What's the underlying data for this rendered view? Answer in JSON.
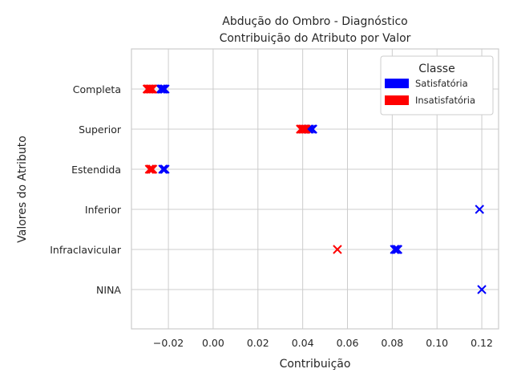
{
  "chart_data": {
    "type": "scatter",
    "title": "Abdução do Ombro - Diagnóstico",
    "subtitle": "Contribuição do Atributo por Valor",
    "xlabel": "Contribuição",
    "ylabel": "Valores do Atributo",
    "xlim": [
      -0.0365,
      0.1275
    ],
    "xticks": [
      -0.02,
      0.0,
      0.02,
      0.04,
      0.06,
      0.08,
      0.1,
      0.12
    ],
    "xtick_labels": [
      "−0.02",
      "0.00",
      "0.02",
      "0.04",
      "0.06",
      "0.08",
      "0.10",
      "0.12"
    ],
    "categories": [
      "Completa",
      "Superior",
      "Estendida",
      "Inferior",
      "Infraclavicular",
      "NINA"
    ],
    "grid": true,
    "marker": "x",
    "legend": {
      "title": "Classe",
      "position": "top-right",
      "entries": [
        {
          "label": "Satisfatória",
          "color": "#0000ff"
        },
        {
          "label": "Insatisfatória",
          "color": "#ff0000"
        }
      ]
    },
    "series": [
      {
        "name": "Satisfatória",
        "color": "#0000ff",
        "points": [
          {
            "category": "Completa",
            "x": [
              -0.0235,
              -0.023,
              -0.0225,
              -0.022,
              -0.0215
            ]
          },
          {
            "category": "Superior",
            "x": [
              0.0425,
              0.043,
              0.044,
              0.0445
            ]
          },
          {
            "category": "Estendida",
            "x": [
              -0.0225,
              -0.022,
              -0.0215
            ]
          },
          {
            "category": "Inferior",
            "x": [
              0.119
            ]
          },
          {
            "category": "Infraclavicular",
            "x": [
              0.081,
              0.0815,
              0.082,
              0.0825
            ]
          },
          {
            "category": "NINA",
            "x": [
              0.12
            ]
          }
        ]
      },
      {
        "name": "Insatisfatória",
        "color": "#ff0000",
        "points": [
          {
            "category": "Completa",
            "x": [
              -0.0295,
              -0.029,
              -0.0285,
              -0.028,
              -0.0275,
              -0.027
            ]
          },
          {
            "category": "Superior",
            "x": [
              0.039,
              0.0395,
              0.04,
              0.0405,
              0.041,
              0.0415
            ]
          },
          {
            "category": "Estendida",
            "x": [
              -0.0285,
              -0.028,
              -0.0275,
              -0.027
            ]
          },
          {
            "category": "Infraclavicular",
            "x": [
              0.0555
            ]
          }
        ]
      }
    ]
  }
}
